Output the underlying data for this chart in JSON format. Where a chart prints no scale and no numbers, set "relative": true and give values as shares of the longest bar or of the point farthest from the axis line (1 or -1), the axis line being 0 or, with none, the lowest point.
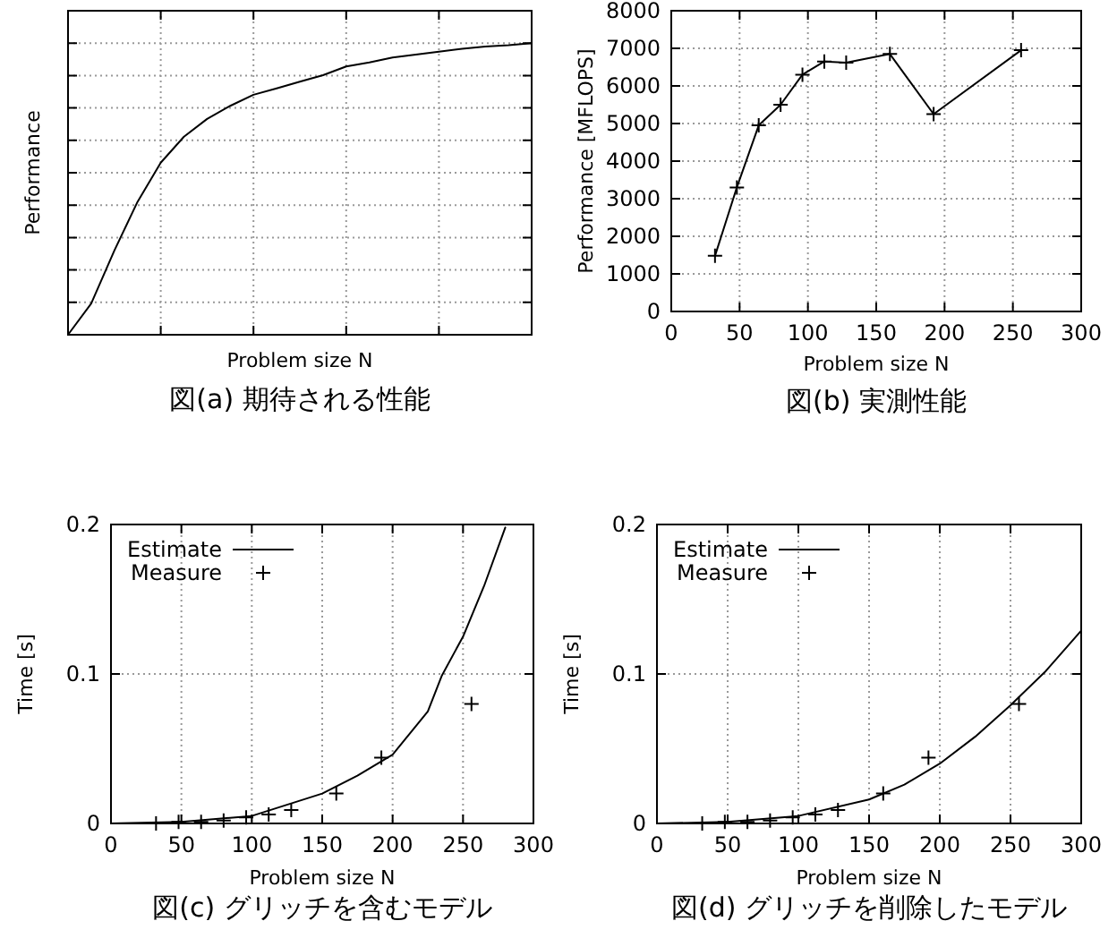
{
  "chart_data": [
    {
      "type": "line",
      "relative": true,
      "categories": [
        null,
        null,
        null,
        null,
        null,
        null,
        null,
        null,
        null,
        null,
        null,
        null,
        null,
        null,
        null,
        null,
        null,
        null,
        null,
        null,
        null
      ],
      "values": [
        0,
        0.107,
        0.289,
        0.456,
        0.59,
        0.679,
        0.74,
        0.785,
        0.823,
        0.845,
        0.868,
        0.89,
        0.92,
        0.934,
        0.951,
        0.961,
        0.971,
        0.981,
        0.988,
        0.993,
        1
      ],
      "color": "#000000",
      "xlabel": "Problem size N",
      "ylabel": "Performance",
      "grid": true,
      "annotations": [
        "図(a) 期待される性能"
      ]
    },
    {
      "type": "line",
      "x": [
        32,
        48,
        64,
        80,
        96,
        112,
        128,
        160,
        192,
        256
      ],
      "values": [
        1480,
        3300,
        4950,
        5500,
        6300,
        6650,
        6620,
        6850,
        5250,
        6950
      ],
      "color": "#000000",
      "marker": "cross",
      "xlabel": "Problem size N",
      "ylabel": "Performance [MFLOPS]",
      "xlim": [
        0,
        300
      ],
      "ylim": [
        0,
        8000
      ],
      "xticks": [
        0,
        50,
        100,
        150,
        200,
        250,
        300
      ],
      "yticks": [
        0,
        1000,
        2000,
        3000,
        4000,
        5000,
        6000,
        7000,
        8000
      ],
      "grid": true,
      "annotations": [
        "図(b) 実測性能"
      ]
    },
    {
      "type": "line",
      "series": [
        {
          "name": "Estimate",
          "color": "#000000",
          "x": [
            0,
            50,
            100,
            150,
            175,
            200,
            225,
            235,
            250,
            265,
            280
          ],
          "values": [
            0,
            0.001,
            0.005,
            0.02,
            0.032,
            0.046,
            0.075,
            0.099,
            0.125,
            0.159,
            0.198
          ]
        },
        {
          "name": "Measure",
          "type": "scatter",
          "marker": "cross",
          "color": "#000000",
          "x": [
            32,
            48,
            64,
            80,
            96,
            112,
            128,
            160,
            192,
            256
          ],
          "values": [
            0,
            0.001,
            0.001,
            0.002,
            0.004,
            0.006,
            0.009,
            0.02,
            0.044,
            0.08
          ]
        }
      ],
      "xlabel": "Problem size N",
      "ylabel": "Time [s]",
      "xlim": [
        0,
        300
      ],
      "ylim": [
        0,
        0.2
      ],
      "xticks": [
        0,
        50,
        100,
        150,
        200,
        250,
        300
      ],
      "yticks": [
        0,
        0.1,
        0.2
      ],
      "grid": true,
      "legend": "top left",
      "annotations": [
        "図(c) グリッチを含むモデル"
      ]
    },
    {
      "type": "line",
      "series": [
        {
          "name": "Estimate",
          "color": "#000000",
          "x": [
            0,
            50,
            100,
            150,
            175,
            200,
            225,
            250,
            275,
            300
          ],
          "values": [
            0,
            0.001,
            0.005,
            0.016,
            0.026,
            0.04,
            0.058,
            0.079,
            0.102,
            0.129
          ]
        },
        {
          "name": "Measure",
          "type": "scatter",
          "marker": "cross",
          "color": "#000000",
          "x": [
            32,
            48,
            64,
            80,
            96,
            112,
            128,
            160,
            192,
            256
          ],
          "values": [
            0,
            0.001,
            0.001,
            0.002,
            0.004,
            0.006,
            0.009,
            0.02,
            0.044,
            0.08
          ]
        }
      ],
      "xlabel": "Problem size N",
      "ylabel": "Time [s]",
      "xlim": [
        0,
        300
      ],
      "ylim": [
        0,
        0.2
      ],
      "xticks": [
        0,
        50,
        100,
        150,
        200,
        250,
        300
      ],
      "yticks": [
        0,
        0.1,
        0.2
      ],
      "grid": true,
      "legend": "top left",
      "annotations": [
        "図(d) グリッチを削除したモデル"
      ]
    }
  ]
}
